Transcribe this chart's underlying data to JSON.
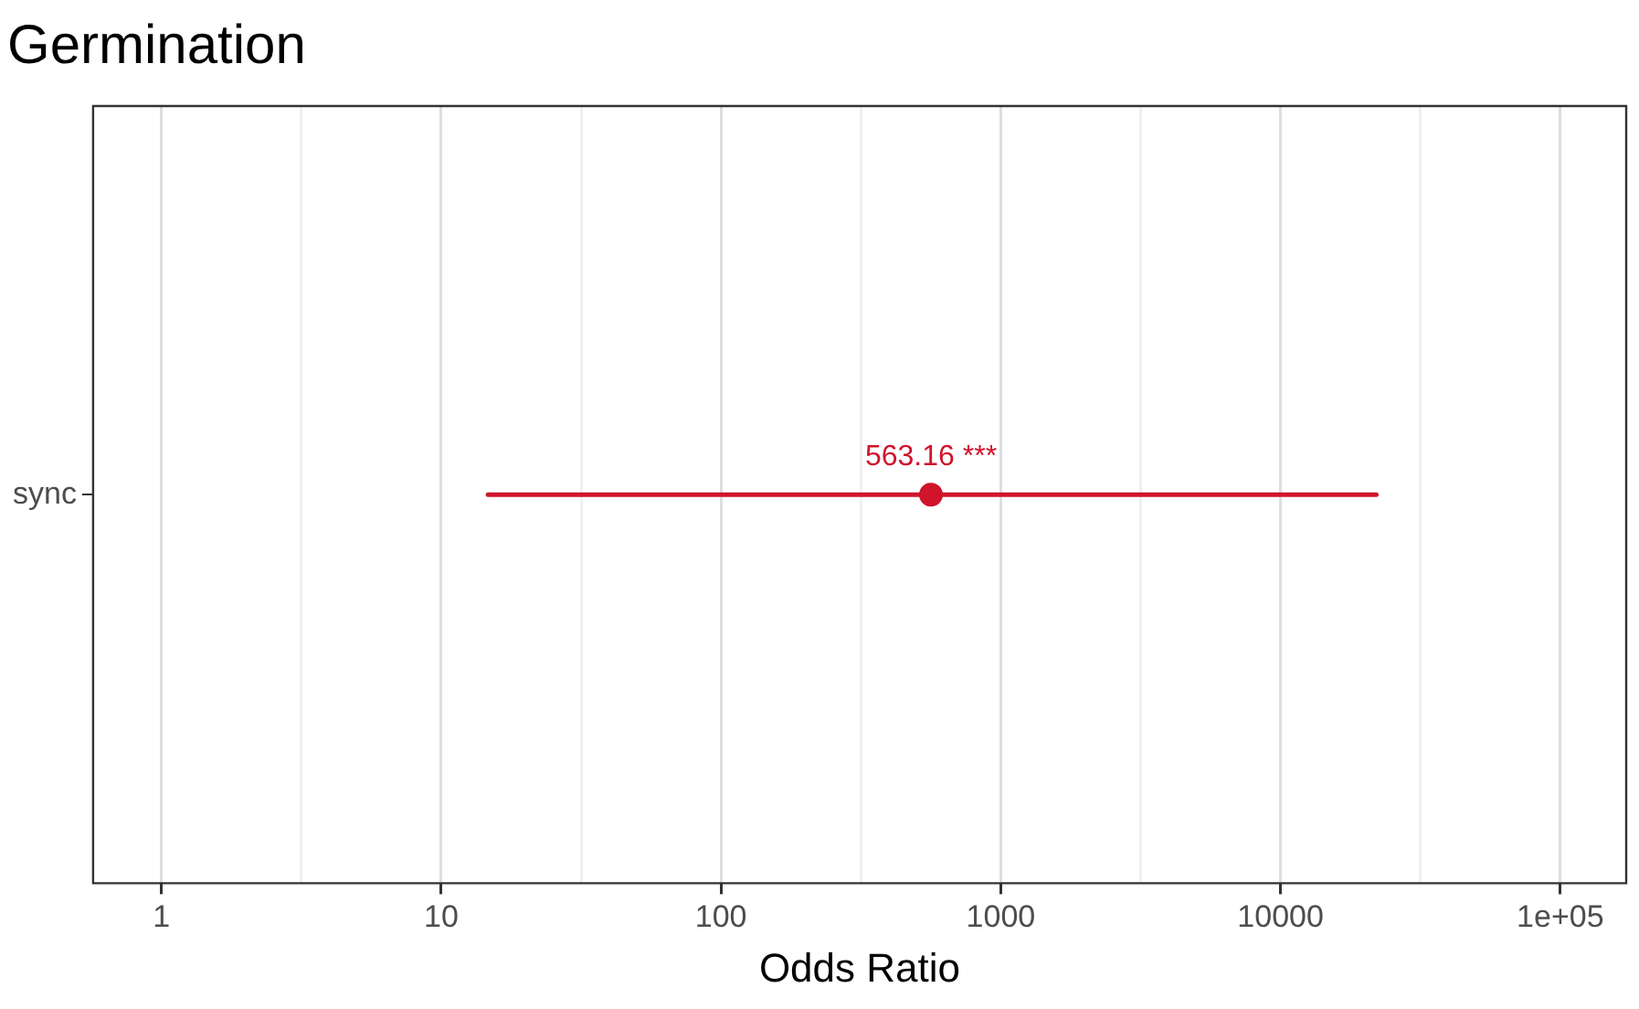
{
  "chart_data": {
    "type": "scatter",
    "title": "Germination",
    "xlabel": "Odds Ratio",
    "categories": [
      "sync"
    ],
    "orientation": "horizontal",
    "values": [
      563.16
    ],
    "errors": [
      [
        14.7,
        22000
      ]
    ],
    "value_labels": [
      "563.16 ***"
    ],
    "color": "#d0142c",
    "marker": "circle",
    "log": "x",
    "xlim": [
      0.57,
      172000
    ],
    "xticks": [
      1,
      {
        "value": 3.162,
        "label": null
      },
      10,
      {
        "value": 31.62,
        "label": null
      },
      100,
      {
        "value": 316.2,
        "label": null
      },
      1000,
      {
        "value": 3162,
        "label": null
      },
      10000,
      {
        "value": 31620,
        "label": null
      },
      {
        "value": 100000,
        "label": "1e+05"
      }
    ],
    "grid": "x",
    "legend": false
  }
}
